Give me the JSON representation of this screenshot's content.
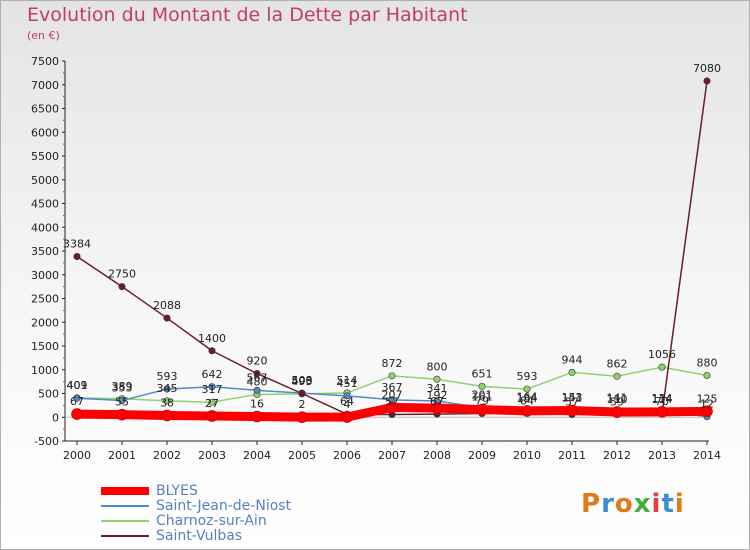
{
  "header": {
    "title": "Evolution du Montant de la Dette par Habitant",
    "subtitle": "(en €)"
  },
  "logo": {
    "text": "Proxiti",
    "colors": [
      "#e07b1a",
      "#3a8fd0",
      "#e07b1a",
      "#3fae3f",
      "#e04040",
      "#3a8fd0",
      "#e07b1a"
    ]
  },
  "chart_data": {
    "type": "line",
    "x": [
      2000,
      2001,
      2002,
      2003,
      2004,
      2005,
      2006,
      2007,
      2008,
      2009,
      2010,
      2011,
      2012,
      2013,
      2014
    ],
    "ylim": [
      -500,
      7500
    ],
    "yticks": [
      -500,
      0,
      500,
      1000,
      1500,
      2000,
      2500,
      3000,
      3500,
      4000,
      4500,
      5000,
      5500,
      6000,
      6500,
      7000,
      7500
    ],
    "grid": false,
    "legend_position": "bottom-left",
    "series": [
      {
        "name": "BLYES",
        "color": "#ff0000",
        "width": 9,
        "values": [
          67,
          55,
          38,
          27,
          16,
          2,
          4,
          207,
          192,
          161,
          134,
          141,
          110,
          114,
          125
        ],
        "labels": [
          "67",
          "55",
          "38",
          "27",
          "16",
          "2",
          "4",
          "207",
          "192",
          "161",
          "134",
          "141",
          "110",
          "114",
          "125"
        ]
      },
      {
        "name": "Saint-Jean-de-Niost",
        "color": "#4f8ac9",
        "width": 1.5,
        "values": [
          401,
          353,
          593,
          642,
          567,
          508,
          451,
          367,
          341,
          201,
          164,
          153,
          141,
          134,
          12
        ],
        "labels": [
          "401",
          "353",
          "593",
          "642",
          "567",
          "508",
          "451",
          "367",
          "341",
          "201",
          "164",
          "153",
          "141",
          "134",
          "12"
        ]
      },
      {
        "name": "Charnoz-sur-Ain",
        "color": "#8fd36a",
        "width": 1.5,
        "values": [
          409,
          389,
          345,
          317,
          480,
          493,
          514,
          872,
          800,
          651,
          593,
          944,
          862,
          1056,
          880
        ],
        "labels": [
          "409",
          "389",
          "345",
          "317",
          "480",
          "493",
          "514",
          "872",
          "800",
          "651",
          "593",
          "944",
          "862",
          "1056",
          "880"
        ]
      },
      {
        "name": "Saint-Vulbas",
        "color": "#6a1e28",
        "width": 1.5,
        "values": [
          3384,
          2750,
          2088,
          1400,
          920,
          500,
          64,
          57,
          67,
          79,
          84,
          57,
          59,
          70,
          7080
        ],
        "labels": [
          "3384",
          "2750",
          "2088",
          "1400",
          "920",
          "500",
          "64",
          "57",
          "67",
          "79",
          "84",
          "57",
          "59",
          "70",
          "7080"
        ]
      }
    ]
  }
}
